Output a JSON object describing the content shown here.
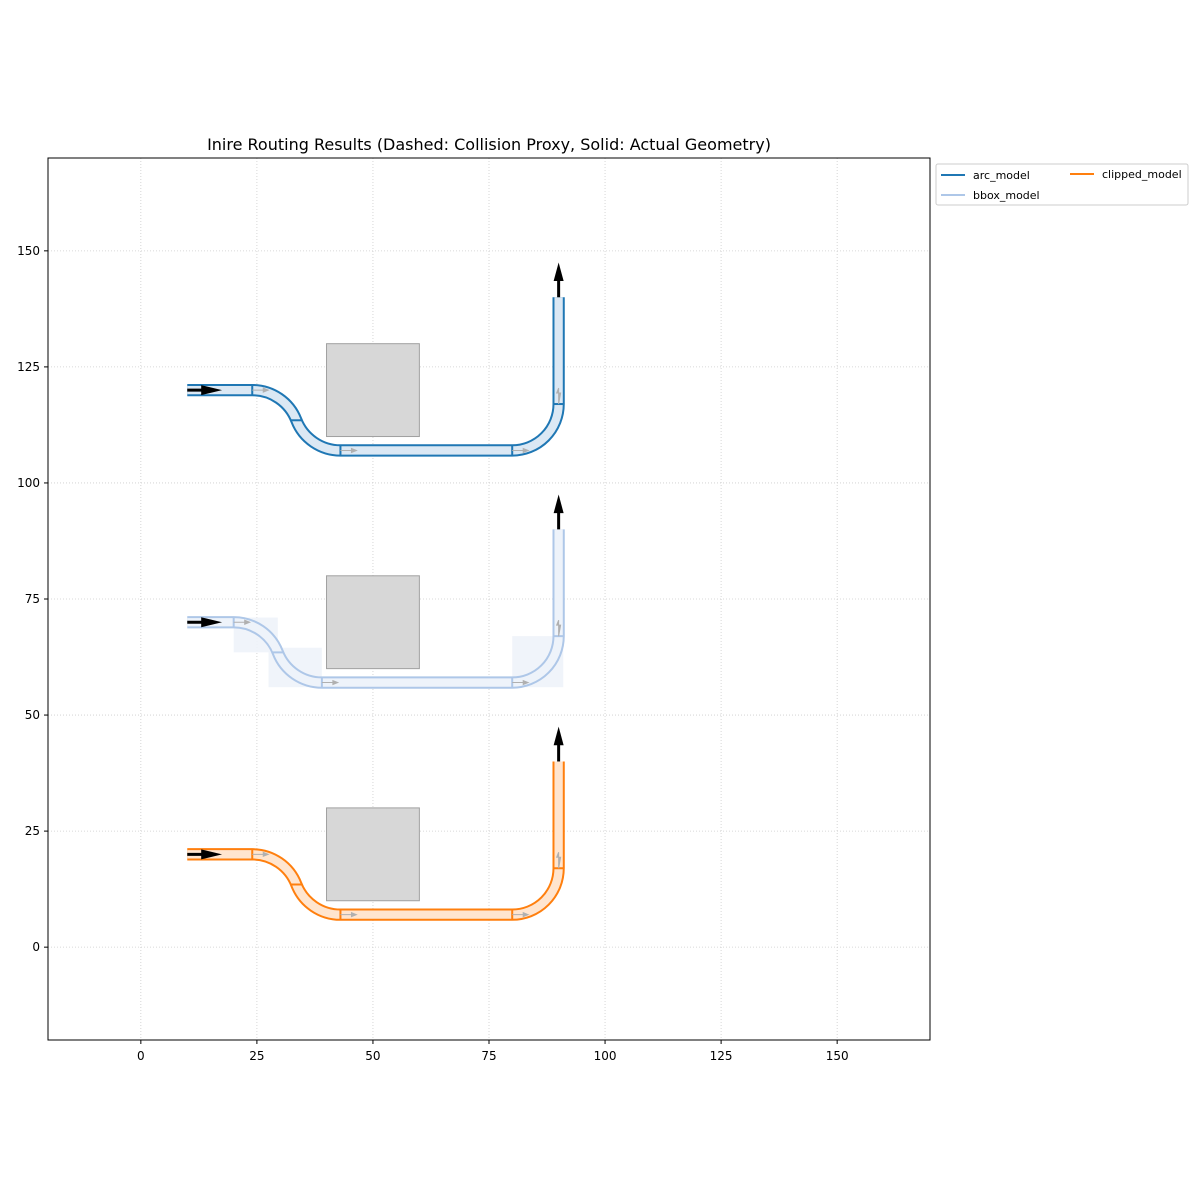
{
  "chart_data": {
    "type": "line",
    "title": "Inire Routing Results (Dashed: Collision Proxy, Solid: Actual Geometry)",
    "xlabel": "",
    "ylabel": "",
    "xlim": [
      -20,
      170
    ],
    "ylim": [
      -20,
      170
    ],
    "xticks": [
      0,
      25,
      50,
      75,
      100,
      125,
      150
    ],
    "yticks": [
      0,
      25,
      50,
      75,
      100,
      125,
      150
    ],
    "grid": true,
    "legend": "outside-top-right",
    "obstacles": [
      {
        "x": [
          40,
          60
        ],
        "y": [
          110,
          130
        ]
      },
      {
        "x": [
          40,
          60
        ],
        "y": [
          60,
          80
        ]
      },
      {
        "x": [
          40,
          60
        ],
        "y": [
          10,
          30
        ]
      }
    ],
    "series": [
      {
        "name": "arc_model",
        "color": "#1f77b4",
        "fill": "#dbe8f4",
        "start": [
          10,
          120
        ],
        "straight_end_x": 24,
        "sbend_end": [
          43,
          107
        ],
        "bend_start_x": 80,
        "bend_radius": 10,
        "end": [
          90,
          140
        ],
        "waveguide_width": 2,
        "proxy_boxes": false
      },
      {
        "name": "bbox_model",
        "color": "#aec7e8",
        "fill": "#eef3fa",
        "start": [
          10,
          70
        ],
        "straight_end_x": 20,
        "sbend_end": [
          39,
          57
        ],
        "bend_start_x": 80,
        "bend_radius": 10,
        "end": [
          90,
          90
        ],
        "waveguide_width": 2,
        "proxy_boxes": true
      },
      {
        "name": "clipped_model",
        "color": "#ff7f0e",
        "fill": "#ffe5cf",
        "start": [
          10,
          20
        ],
        "straight_end_x": 24,
        "sbend_end": [
          43,
          7
        ],
        "bend_start_x": 80,
        "bend_radius": 10,
        "end": [
          90,
          40
        ],
        "waveguide_width": 2,
        "proxy_boxes": false
      }
    ]
  }
}
